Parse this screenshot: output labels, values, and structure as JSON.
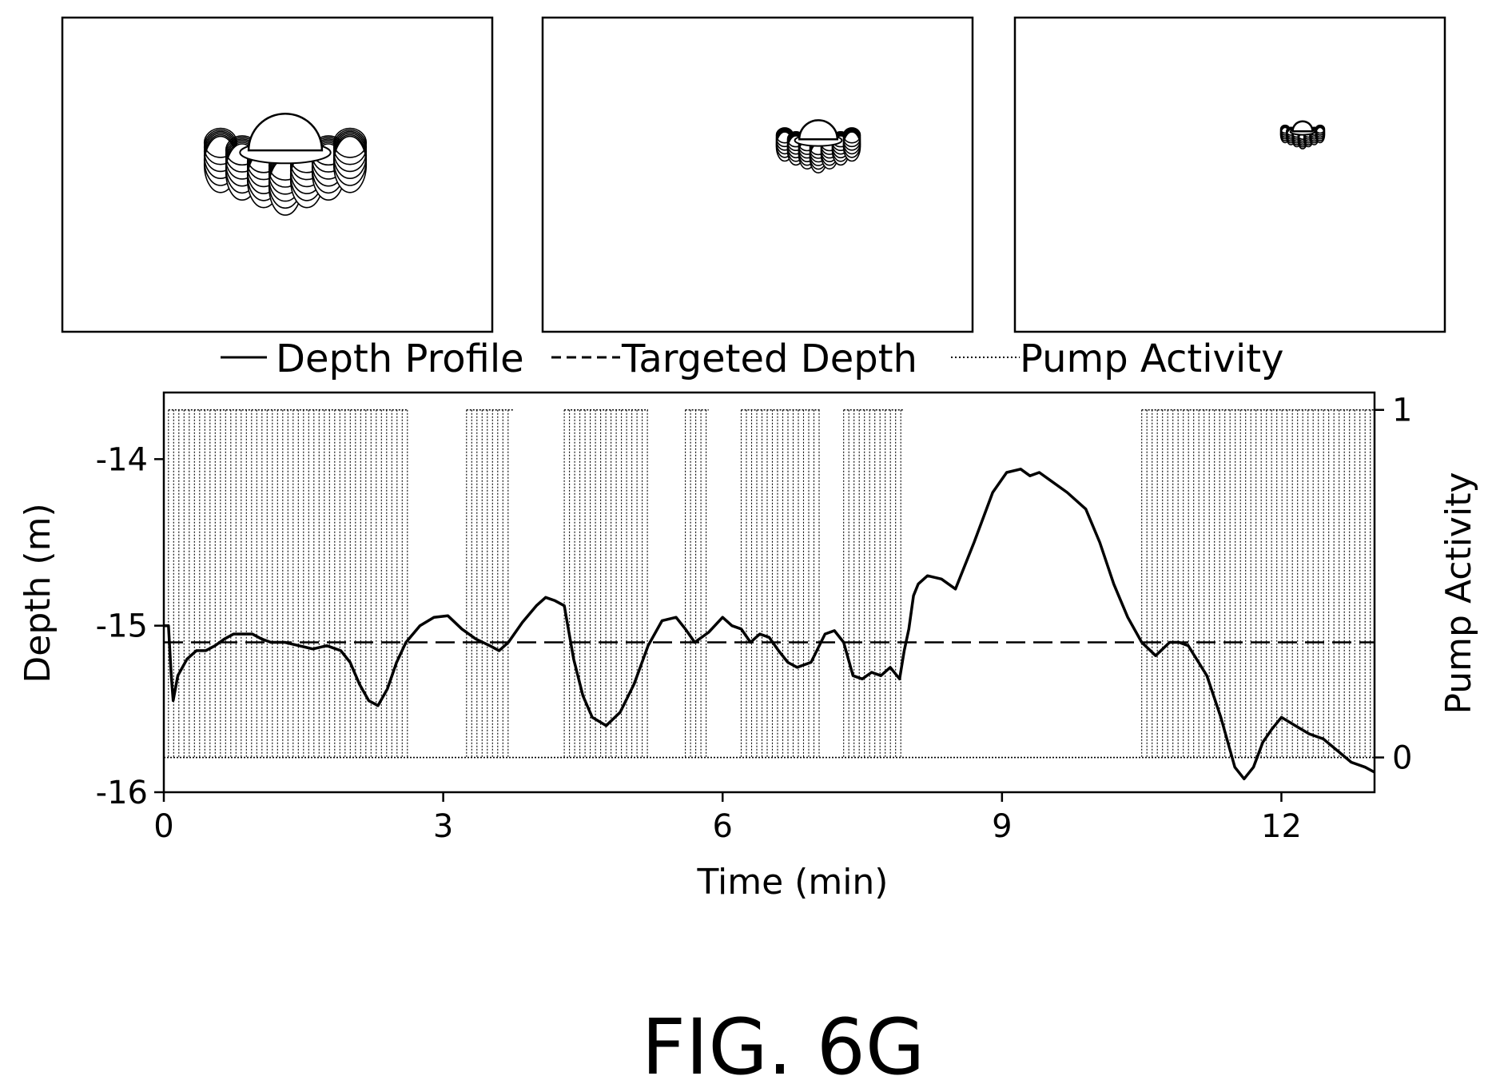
{
  "figure": {
    "label": "FIG. 6G"
  },
  "panels": [
    {
      "icon": "jellyfish-robot-icon",
      "relative_size": 1.0
    },
    {
      "icon": "jellyfish-robot-icon",
      "relative_size": 0.72
    },
    {
      "icon": "jellyfish-robot-icon",
      "relative_size": 0.52
    }
  ],
  "legend": {
    "depth_profile": "Depth Profile",
    "targeted_depth": "Targeted Depth",
    "pump_activity": "Pump Activity"
  },
  "axes": {
    "xlabel": "Time (min)",
    "ylabel_left": "Depth (m)",
    "ylabel_right": "Pump Activity",
    "xticks": [
      "0",
      "3",
      "6",
      "9",
      "12"
    ],
    "yticks_left": [
      "-14",
      "-15",
      "-16"
    ],
    "yticks_right": [
      "1",
      "0"
    ]
  },
  "chart_data": {
    "type": "line",
    "title": "",
    "xlabel": "Time (min)",
    "ylabel": "Depth (m)",
    "y2label": "Pump Activity",
    "xlim": [
      0,
      13
    ],
    "ylim": [
      -16,
      -13.6
    ],
    "y2lim": [
      -0.1,
      1.05
    ],
    "grid": false,
    "legend_position": "top",
    "series": [
      {
        "name": "Depth Profile",
        "style": "solid",
        "x": [
          0,
          0.05,
          0.08,
          0.1,
          0.15,
          0.25,
          0.35,
          0.45,
          0.55,
          0.65,
          0.75,
          0.85,
          0.95,
          1.05,
          1.15,
          1.3,
          1.45,
          1.6,
          1.75,
          1.9,
          2.0,
          2.1,
          2.2,
          2.3,
          2.4,
          2.5,
          2.6,
          2.75,
          2.9,
          3.05,
          3.2,
          3.35,
          3.5,
          3.6,
          3.7,
          3.85,
          4.0,
          4.1,
          4.2,
          4.3,
          4.4,
          4.5,
          4.6,
          4.75,
          4.9,
          5.05,
          5.2,
          5.35,
          5.5,
          5.6,
          5.7,
          5.85,
          6.0,
          6.1,
          6.2,
          6.3,
          6.4,
          6.5,
          6.6,
          6.7,
          6.8,
          6.95,
          7.1,
          7.2,
          7.3,
          7.4,
          7.5,
          7.6,
          7.7,
          7.8,
          7.9,
          7.95,
          8.0,
          8.05,
          8.1,
          8.2,
          8.35,
          8.5,
          8.7,
          8.9,
          9.05,
          9.2,
          9.3,
          9.4,
          9.5,
          9.7,
          9.9,
          10.05,
          10.2,
          10.35,
          10.5,
          10.65,
          10.8,
          10.9,
          11.0,
          11.2,
          11.35,
          11.5,
          11.6,
          11.7,
          11.8,
          11.9,
          12.0,
          12.15,
          12.3,
          12.45,
          12.6,
          12.75,
          12.9,
          13.0
        ],
        "y": [
          -15.0,
          -15.0,
          -15.3,
          -15.45,
          -15.3,
          -15.2,
          -15.15,
          -15.15,
          -15.12,
          -15.08,
          -15.05,
          -15.05,
          -15.05,
          -15.08,
          -15.1,
          -15.1,
          -15.12,
          -15.14,
          -15.12,
          -15.15,
          -15.22,
          -15.35,
          -15.45,
          -15.48,
          -15.38,
          -15.22,
          -15.1,
          -15.0,
          -14.95,
          -14.94,
          -15.02,
          -15.08,
          -15.12,
          -15.15,
          -15.1,
          -14.98,
          -14.88,
          -14.83,
          -14.85,
          -14.88,
          -15.2,
          -15.42,
          -15.55,
          -15.6,
          -15.52,
          -15.35,
          -15.12,
          -14.97,
          -14.95,
          -15.02,
          -15.1,
          -15.04,
          -14.95,
          -15.0,
          -15.02,
          -15.1,
          -15.05,
          -15.07,
          -15.15,
          -15.22,
          -15.25,
          -15.22,
          -15.05,
          -15.03,
          -15.1,
          -15.3,
          -15.32,
          -15.28,
          -15.3,
          -15.25,
          -15.32,
          -15.15,
          -15.02,
          -14.82,
          -14.75,
          -14.7,
          -14.72,
          -14.78,
          -14.5,
          -14.2,
          -14.08,
          -14.06,
          -14.1,
          -14.08,
          -14.12,
          -14.2,
          -14.3,
          -14.5,
          -14.75,
          -14.95,
          -15.1,
          -15.18,
          -15.1,
          -15.1,
          -15.12,
          -15.3,
          -15.55,
          -15.85,
          -15.92,
          -15.85,
          -15.7,
          -15.62,
          -15.55,
          -15.6,
          -15.65,
          -15.68,
          -15.75,
          -15.82,
          -15.85,
          -15.88
        ]
      },
      {
        "name": "Targeted Depth",
        "style": "dashed",
        "x": [
          0,
          13
        ],
        "y": [
          -15.1,
          -15.1
        ]
      }
    ],
    "pump_activity": {
      "name": "Pump Activity",
      "style": "dotted",
      "axis": "right",
      "active_intervals": [
        [
          0.05,
          2.62
        ],
        [
          3.25,
          3.75
        ],
        [
          4.3,
          5.2
        ],
        [
          5.6,
          5.85
        ],
        [
          6.2,
          7.05
        ],
        [
          7.3,
          7.95
        ],
        [
          10.5,
          13.0
        ]
      ]
    }
  }
}
